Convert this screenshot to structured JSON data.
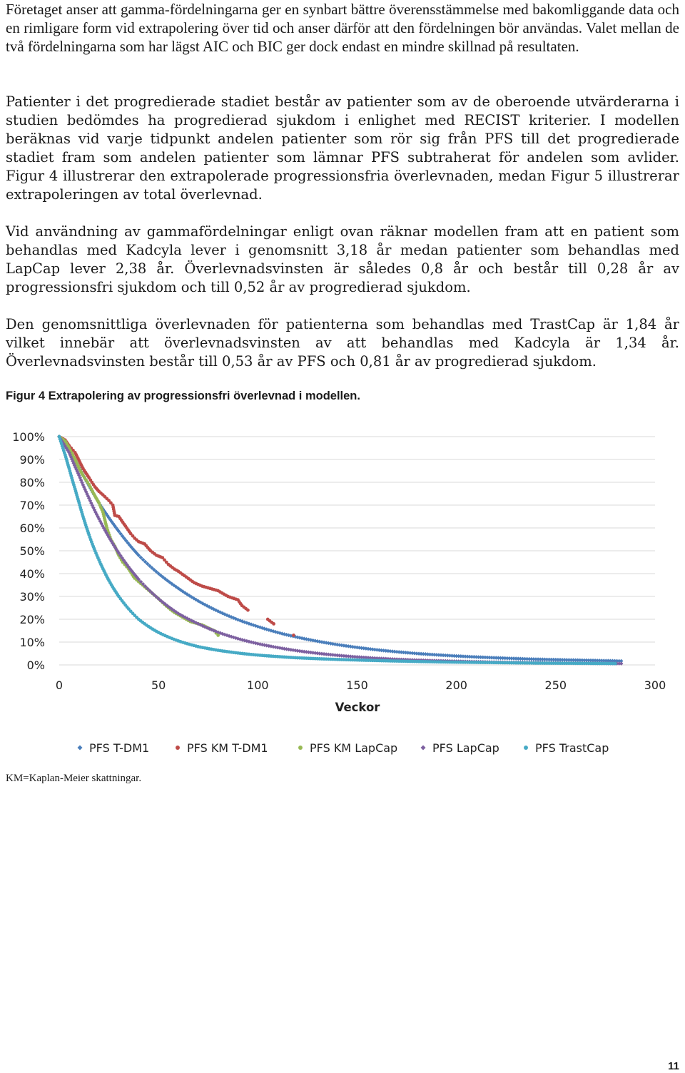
{
  "document": {
    "paragraphs": [
      "Företaget anser att gamma-fördelningarna ger en synbart bättre överensstämmelse med bakomliggande data och en rimligare form vid extrapolering över tid och anser därför att den fördelningen bör användas. Valet mellan de två fördelningarna som har lägst AIC och BIC ger dock endast en mindre skillnad på resultaten.",
      "Patienter i det progredierade stadiet består av patienter som av de oberoende utvärderarna i studien bedömdes ha progredierad sjukdom i enlighet med RECIST kriterier. I modellen beräknas vid varje tidpunkt andelen patienter som rör sig från PFS till det progredierade stadiet fram som andelen patienter som lämnar PFS subtraherat för andelen som avlider. Figur 4 illustrerar den extrapolerade progressionsfria överlevnaden, medan Figur 5 illustrerar extrapoleringen av total överlevnad.",
      "Vid användning av gammafördelningar enligt ovan räknar modellen fram att en patient som behandlas med Kadcyla lever i genomsnitt 3,18 år medan patienter som behandlas med LapCap lever 2,38 år. Överlevnadsvinsten är således 0,8 år och består till 0,28 år av progressionsfri sjukdom och till 0,52 år av progredierad sjukdom.",
      "Den genomsnittliga överlevnaden för patienterna som behandlas med TrastCap är 1,84 år vilket innebär att överlevnadsvinsten av att behandlas med Kadcyla är 1,34 år. Överlevnadsvinsten består till 0,53 år av PFS och 0,81 år av progredierad sjukdom."
    ],
    "figure_caption": "Figur 4 Extrapolering av progressionsfri överlevnad i modellen.",
    "footnote": "KM=Kaplan-Meier skattningar.",
    "page_number": "11"
  },
  "chart_data": {
    "type": "scatter",
    "title": "",
    "xlabel": "Veckor",
    "ylabel": "",
    "xlim": [
      0,
      300
    ],
    "ylim": [
      0,
      1
    ],
    "x_ticks": [
      "0",
      "50",
      "100",
      "150",
      "200",
      "250",
      "300"
    ],
    "y_ticks": [
      "0%",
      "10%",
      "20%",
      "30%",
      "40%",
      "50%",
      "60%",
      "70%",
      "80%",
      "90%",
      "100%"
    ],
    "grid": "horizontal",
    "legend_position": "bottom",
    "series": [
      {
        "name": "PFS T-DM1",
        "color": "#4a7ebb",
        "marker": "diamond",
        "points": [
          [
            0,
            1.0
          ],
          [
            5,
            0.945
          ],
          [
            10,
            0.865
          ],
          [
            15,
            0.785
          ],
          [
            20,
            0.71
          ],
          [
            25,
            0.645
          ],
          [
            30,
            0.585
          ],
          [
            40,
            0.48
          ],
          [
            50,
            0.4
          ],
          [
            60,
            0.335
          ],
          [
            70,
            0.28
          ],
          [
            80,
            0.235
          ],
          [
            90,
            0.198
          ],
          [
            100,
            0.168
          ],
          [
            110,
            0.142
          ],
          [
            120,
            0.121
          ],
          [
            140,
            0.089
          ],
          [
            160,
            0.066
          ],
          [
            180,
            0.05
          ],
          [
            200,
            0.039
          ],
          [
            220,
            0.031
          ],
          [
            240,
            0.025
          ],
          [
            260,
            0.021
          ],
          [
            283,
            0.017
          ]
        ]
      },
      {
        "name": "PFS KM T-DM1",
        "color": "#be4b48",
        "marker": "circle",
        "points": [
          [
            0,
            1.0
          ],
          [
            3,
            0.985
          ],
          [
            5,
            0.96
          ],
          [
            8,
            0.93
          ],
          [
            10,
            0.895
          ],
          [
            12,
            0.86
          ],
          [
            15,
            0.82
          ],
          [
            18,
            0.78
          ],
          [
            20,
            0.76
          ],
          [
            22,
            0.745
          ],
          [
            25,
            0.72
          ],
          [
            27,
            0.7
          ],
          [
            28,
            0.655
          ],
          [
            30,
            0.65
          ],
          [
            32,
            0.625
          ],
          [
            34,
            0.6
          ],
          [
            36,
            0.575
          ],
          [
            38,
            0.555
          ],
          [
            40,
            0.54
          ],
          [
            43,
            0.53
          ],
          [
            46,
            0.5
          ],
          [
            49,
            0.48
          ],
          [
            52,
            0.47
          ],
          [
            55,
            0.44
          ],
          [
            58,
            0.42
          ],
          [
            60,
            0.41
          ],
          [
            64,
            0.385
          ],
          [
            68,
            0.36
          ],
          [
            72,
            0.345
          ],
          [
            76,
            0.335
          ],
          [
            80,
            0.325
          ],
          [
            85,
            0.3
          ],
          [
            90,
            0.285
          ],
          [
            92,
            0.26
          ],
          [
            95,
            0.24
          ],
          [
            105,
            0.2
          ],
          [
            108,
            0.18
          ],
          [
            118,
            0.13
          ]
        ]
      },
      {
        "name": "PFS KM LapCap",
        "color": "#98b954",
        "marker": "circle",
        "points": [
          [
            0,
            1.0
          ],
          [
            3,
            0.98
          ],
          [
            5,
            0.95
          ],
          [
            8,
            0.9
          ],
          [
            10,
            0.86
          ],
          [
            12,
            0.83
          ],
          [
            15,
            0.79
          ],
          [
            18,
            0.74
          ],
          [
            20,
            0.71
          ],
          [
            22,
            0.67
          ],
          [
            24,
            0.6
          ],
          [
            26,
            0.55
          ],
          [
            28,
            0.52
          ],
          [
            30,
            0.48
          ],
          [
            32,
            0.45
          ],
          [
            35,
            0.42
          ],
          [
            38,
            0.38
          ],
          [
            42,
            0.35
          ],
          [
            46,
            0.32
          ],
          [
            50,
            0.29
          ],
          [
            55,
            0.25
          ],
          [
            58,
            0.23
          ],
          [
            62,
            0.21
          ],
          [
            66,
            0.19
          ],
          [
            70,
            0.18
          ],
          [
            72,
            0.175
          ],
          [
            78,
            0.15
          ],
          [
            80,
            0.13
          ]
        ]
      },
      {
        "name": "PFS LapCap",
        "color": "#7d60a0",
        "marker": "diamond",
        "points": [
          [
            0,
            1.0
          ],
          [
            5,
            0.93
          ],
          [
            10,
            0.83
          ],
          [
            15,
            0.73
          ],
          [
            20,
            0.64
          ],
          [
            25,
            0.56
          ],
          [
            30,
            0.49
          ],
          [
            40,
            0.375
          ],
          [
            50,
            0.29
          ],
          [
            60,
            0.225
          ],
          [
            70,
            0.18
          ],
          [
            80,
            0.143
          ],
          [
            90,
            0.115
          ],
          [
            100,
            0.093
          ],
          [
            110,
            0.076
          ],
          [
            120,
            0.062
          ],
          [
            140,
            0.042
          ],
          [
            160,
            0.029
          ],
          [
            180,
            0.021
          ],
          [
            200,
            0.016
          ],
          [
            220,
            0.012
          ],
          [
            240,
            0.01
          ],
          [
            260,
            0.008
          ],
          [
            283,
            0.006
          ]
        ]
      },
      {
        "name": "PFS TrastCap",
        "color": "#46aac5",
        "marker": "circle",
        "points": [
          [
            0,
            1.0
          ],
          [
            3,
            0.92
          ],
          [
            5,
            0.86
          ],
          [
            8,
            0.77
          ],
          [
            10,
            0.71
          ],
          [
            12,
            0.65
          ],
          [
            15,
            0.57
          ],
          [
            18,
            0.5
          ],
          [
            20,
            0.46
          ],
          [
            25,
            0.37
          ],
          [
            30,
            0.3
          ],
          [
            35,
            0.245
          ],
          [
            40,
            0.2
          ],
          [
            45,
            0.168
          ],
          [
            50,
            0.142
          ],
          [
            60,
            0.105
          ],
          [
            70,
            0.08
          ],
          [
            80,
            0.064
          ],
          [
            90,
            0.052
          ],
          [
            100,
            0.043
          ],
          [
            120,
            0.031
          ],
          [
            140,
            0.024
          ],
          [
            160,
            0.019
          ],
          [
            180,
            0.015
          ],
          [
            200,
            0.012
          ],
          [
            220,
            0.01
          ],
          [
            240,
            0.008
          ],
          [
            260,
            0.007
          ],
          [
            280,
            0.006
          ]
        ]
      }
    ]
  }
}
